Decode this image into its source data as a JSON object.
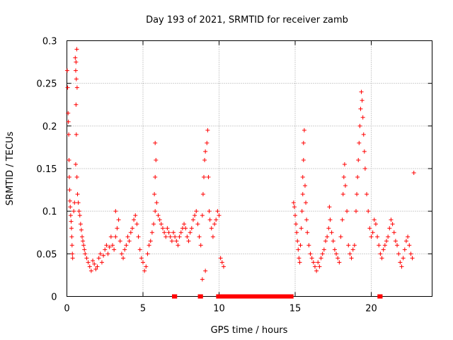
{
  "chart_data": {
    "type": "scatter",
    "title": "Day 193 of 2021, SRMTID for receiver zamb",
    "xlabel": "GPS time / hours",
    "ylabel": "SRMTID / TECUs",
    "xlim": [
      0,
      24
    ],
    "ylim": [
      0,
      0.3
    ],
    "xticks": [
      "0",
      "5",
      "10",
      "15",
      "20"
    ],
    "yticks": [
      "0",
      "0.05",
      "0.1",
      "0.15",
      "0.2",
      "0.25",
      "0.3"
    ],
    "grid": true,
    "marker": "plus",
    "series": [
      {
        "name": "SRMTID",
        "color": "#ff0000",
        "points": [
          [
            0.02,
            0.265
          ],
          [
            0.05,
            0.245
          ],
          [
            0.08,
            0.215
          ],
          [
            0.1,
            0.205
          ],
          [
            0.12,
            0.19
          ],
          [
            0.14,
            0.16
          ],
          [
            0.16,
            0.14
          ],
          [
            0.18,
            0.125
          ],
          [
            0.2,
            0.112
          ],
          [
            0.22,
            0.105
          ],
          [
            0.25,
            0.095
          ],
          [
            0.28,
            0.088
          ],
          [
            0.3,
            0.08
          ],
          [
            0.32,
            0.07
          ],
          [
            0.34,
            0.06
          ],
          [
            0.36,
            0.05
          ],
          [
            0.38,
            0.045
          ],
          [
            0.55,
            0.28
          ],
          [
            0.58,
            0.265
          ],
          [
            0.6,
            0.275
          ],
          [
            0.62,
            0.255
          ],
          [
            0.65,
            0.29
          ],
          [
            0.67,
            0.245
          ],
          [
            0.6,
            0.225
          ],
          [
            0.62,
            0.19
          ],
          [
            0.58,
            0.155
          ],
          [
            0.66,
            0.14
          ],
          [
            0.7,
            0.12
          ],
          [
            0.75,
            0.11
          ],
          [
            0.8,
            0.1
          ],
          [
            0.5,
            0.11
          ],
          [
            0.45,
            0.1
          ],
          [
            0.85,
            0.095
          ],
          [
            0.9,
            0.085
          ],
          [
            0.95,
            0.078
          ],
          [
            1.0,
            0.07
          ],
          [
            1.05,
            0.065
          ],
          [
            1.1,
            0.06
          ],
          [
            1.15,
            0.055
          ],
          [
            1.2,
            0.05
          ],
          [
            1.3,
            0.045
          ],
          [
            1.4,
            0.04
          ],
          [
            1.5,
            0.035
          ],
          [
            1.6,
            0.03
          ],
          [
            1.7,
            0.042
          ],
          [
            1.8,
            0.038
          ],
          [
            1.9,
            0.032
          ],
          [
            2.0,
            0.035
          ],
          [
            2.1,
            0.045
          ],
          [
            2.2,
            0.05
          ],
          [
            2.3,
            0.04
          ],
          [
            2.4,
            0.048
          ],
          [
            2.5,
            0.055
          ],
          [
            2.6,
            0.06
          ],
          [
            2.7,
            0.05
          ],
          [
            2.8,
            0.058
          ],
          [
            2.9,
            0.07
          ],
          [
            3.0,
            0.06
          ],
          [
            3.1,
            0.055
          ],
          [
            3.2,
            0.07
          ],
          [
            3.3,
            0.08
          ],
          [
            3.4,
            0.09
          ],
          [
            3.2,
            0.1
          ],
          [
            3.5,
            0.065
          ],
          [
            3.6,
            0.05
          ],
          [
            3.7,
            0.045
          ],
          [
            3.8,
            0.055
          ],
          [
            3.9,
            0.06
          ],
          [
            4.0,
            0.07
          ],
          [
            4.1,
            0.065
          ],
          [
            4.2,
            0.075
          ],
          [
            4.3,
            0.08
          ],
          [
            4.4,
            0.09
          ],
          [
            4.5,
            0.095
          ],
          [
            4.6,
            0.085
          ],
          [
            4.7,
            0.07
          ],
          [
            4.8,
            0.055
          ],
          [
            4.9,
            0.045
          ],
          [
            5.0,
            0.04
          ],
          [
            5.1,
            0.03
          ],
          [
            5.2,
            0.035
          ],
          [
            5.3,
            0.05
          ],
          [
            5.4,
            0.06
          ],
          [
            5.5,
            0.065
          ],
          [
            5.6,
            0.075
          ],
          [
            5.7,
            0.085
          ],
          [
            5.8,
            0.1
          ],
          [
            5.75,
            0.12
          ],
          [
            5.8,
            0.14
          ],
          [
            5.85,
            0.16
          ],
          [
            5.8,
            0.18
          ],
          [
            5.9,
            0.11
          ],
          [
            6.0,
            0.095
          ],
          [
            6.1,
            0.09
          ],
          [
            6.2,
            0.085
          ],
          [
            6.3,
            0.08
          ],
          [
            6.4,
            0.075
          ],
          [
            6.5,
            0.07
          ],
          [
            6.6,
            0.08
          ],
          [
            6.7,
            0.075
          ],
          [
            6.8,
            0.07
          ],
          [
            6.9,
            0.065
          ],
          [
            7.0,
            0.075
          ],
          [
            7.1,
            0.07
          ],
          [
            7.2,
            0.065
          ],
          [
            7.3,
            0.06
          ],
          [
            7.4,
            0.07
          ],
          [
            7.5,
            0.075
          ],
          [
            7.6,
            0.08
          ],
          [
            7.7,
            0.085
          ],
          [
            7.8,
            0.08
          ],
          [
            7.9,
            0.07
          ],
          [
            8.0,
            0.065
          ],
          [
            8.1,
            0.075
          ],
          [
            8.2,
            0.08
          ],
          [
            8.3,
            0.09
          ],
          [
            8.4,
            0.095
          ],
          [
            8.5,
            0.1
          ],
          [
            8.6,
            0.085
          ],
          [
            8.7,
            0.07
          ],
          [
            8.8,
            0.06
          ],
          [
            8.9,
            0.095
          ],
          [
            8.95,
            0.12
          ],
          [
            9.0,
            0.14
          ],
          [
            9.05,
            0.16
          ],
          [
            9.1,
            0.17
          ],
          [
            9.2,
            0.18
          ],
          [
            9.25,
            0.195
          ],
          [
            9.3,
            0.14
          ],
          [
            9.35,
            0.1
          ],
          [
            9.4,
            0.09
          ],
          [
            9.5,
            0.08
          ],
          [
            9.6,
            0.07
          ],
          [
            9.7,
            0.085
          ],
          [
            9.8,
            0.09
          ],
          [
            9.9,
            0.1
          ],
          [
            10.0,
            0.095
          ],
          [
            10.1,
            0.045
          ],
          [
            10.2,
            0.04
          ],
          [
            10.3,
            0.035
          ],
          [
            8.9,
            0.02
          ],
          [
            9.1,
            0.03
          ],
          [
            14.9,
            0.11
          ],
          [
            14.95,
            0.105
          ],
          [
            15.0,
            0.095
          ],
          [
            15.05,
            0.085
          ],
          [
            15.1,
            0.075
          ],
          [
            15.15,
            0.065
          ],
          [
            15.2,
            0.055
          ],
          [
            15.25,
            0.045
          ],
          [
            15.3,
            0.04
          ],
          [
            15.35,
            0.06
          ],
          [
            15.4,
            0.08
          ],
          [
            15.45,
            0.1
          ],
          [
            15.5,
            0.12
          ],
          [
            15.5,
            0.14
          ],
          [
            15.55,
            0.16
          ],
          [
            15.55,
            0.18
          ],
          [
            15.6,
            0.195
          ],
          [
            15.65,
            0.13
          ],
          [
            15.7,
            0.11
          ],
          [
            15.75,
            0.09
          ],
          [
            15.8,
            0.075
          ],
          [
            15.9,
            0.06
          ],
          [
            16.0,
            0.05
          ],
          [
            16.1,
            0.045
          ],
          [
            16.2,
            0.04
          ],
          [
            16.3,
            0.035
          ],
          [
            16.4,
            0.03
          ],
          [
            16.5,
            0.04
          ],
          [
            16.6,
            0.035
          ],
          [
            16.7,
            0.045
          ],
          [
            16.8,
            0.05
          ],
          [
            16.9,
            0.055
          ],
          [
            17.0,
            0.065
          ],
          [
            17.1,
            0.07
          ],
          [
            17.2,
            0.08
          ],
          [
            17.3,
            0.09
          ],
          [
            17.25,
            0.105
          ],
          [
            17.4,
            0.075
          ],
          [
            17.5,
            0.065
          ],
          [
            17.6,
            0.055
          ],
          [
            17.7,
            0.05
          ],
          [
            17.8,
            0.045
          ],
          [
            17.9,
            0.04
          ],
          [
            18.0,
            0.07
          ],
          [
            18.1,
            0.09
          ],
          [
            18.15,
            0.12
          ],
          [
            18.2,
            0.14
          ],
          [
            18.25,
            0.155
          ],
          [
            18.3,
            0.13
          ],
          [
            18.4,
            0.1
          ],
          [
            18.5,
            0.06
          ],
          [
            18.6,
            0.05
          ],
          [
            18.7,
            0.045
          ],
          [
            18.8,
            0.055
          ],
          [
            18.9,
            0.06
          ],
          [
            19.0,
            0.1
          ],
          [
            19.05,
            0.12
          ],
          [
            19.1,
            0.14
          ],
          [
            19.15,
            0.16
          ],
          [
            19.2,
            0.18
          ],
          [
            19.25,
            0.2
          ],
          [
            19.3,
            0.22
          ],
          [
            19.35,
            0.24
          ],
          [
            19.4,
            0.23
          ],
          [
            19.45,
            0.21
          ],
          [
            19.5,
            0.19
          ],
          [
            19.55,
            0.17
          ],
          [
            19.6,
            0.15
          ],
          [
            19.7,
            0.12
          ],
          [
            19.8,
            0.1
          ],
          [
            19.9,
            0.08
          ],
          [
            20.0,
            0.07
          ],
          [
            20.1,
            0.075
          ],
          [
            20.2,
            0.09
          ],
          [
            20.3,
            0.085
          ],
          [
            20.4,
            0.07
          ],
          [
            20.5,
            0.06
          ],
          [
            20.6,
            0.05
          ],
          [
            20.7,
            0.045
          ],
          [
            20.8,
            0.055
          ],
          [
            20.9,
            0.06
          ],
          [
            21.0,
            0.065
          ],
          [
            21.1,
            0.07
          ],
          [
            21.2,
            0.08
          ],
          [
            21.3,
            0.09
          ],
          [
            21.4,
            0.085
          ],
          [
            21.5,
            0.075
          ],
          [
            21.6,
            0.065
          ],
          [
            21.7,
            0.06
          ],
          [
            21.8,
            0.05
          ],
          [
            21.9,
            0.04
          ],
          [
            22.0,
            0.035
          ],
          [
            22.1,
            0.045
          ],
          [
            22.2,
            0.055
          ],
          [
            22.3,
            0.065
          ],
          [
            22.4,
            0.07
          ],
          [
            22.5,
            0.06
          ],
          [
            22.6,
            0.05
          ],
          [
            22.7,
            0.045
          ],
          [
            22.8,
            0.145
          ]
        ]
      }
    ],
    "zero_segments": [
      [
        7.0,
        7.15
      ],
      [
        8.7,
        8.85
      ],
      [
        9.9,
        14.8
      ],
      [
        20.5,
        20.65
      ]
    ]
  }
}
